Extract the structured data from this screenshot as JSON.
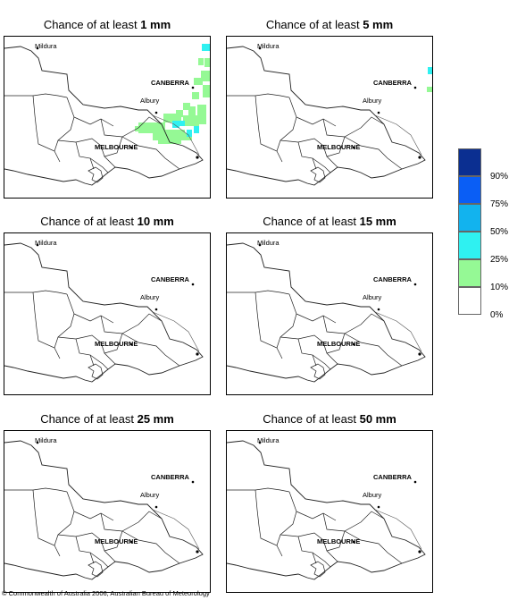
{
  "panels": [
    {
      "prefix": "Chance of at least ",
      "amount": "1 mm",
      "has_rain": true
    },
    {
      "prefix": "Chance of at least ",
      "amount": "5 mm",
      "has_rain": false,
      "has_specks": true
    },
    {
      "prefix": "Chance of at least ",
      "amount": "10 mm"
    },
    {
      "prefix": "Chance of at least ",
      "amount": "15 mm"
    },
    {
      "prefix": "Chance of at least ",
      "amount": "25 mm"
    },
    {
      "prefix": "Chance of at least ",
      "amount": "50 mm"
    }
  ],
  "places": {
    "mildura": "Mildura",
    "canberra": "CANBERRA",
    "albury": "Albury",
    "melbourne": "MELBOURNE"
  },
  "legend": {
    "labels": [
      "90%",
      "75%",
      "50%",
      "25%",
      "10%",
      "0%"
    ],
    "colors": [
      "#0b2f91",
      "#0a5ef5",
      "#12b3ee",
      "#2ff1f1",
      "#95f995",
      "#ffffff"
    ]
  },
  "copyright": "© Commonwealth of Australia 2006, Australian Bureau of Meteorology"
}
